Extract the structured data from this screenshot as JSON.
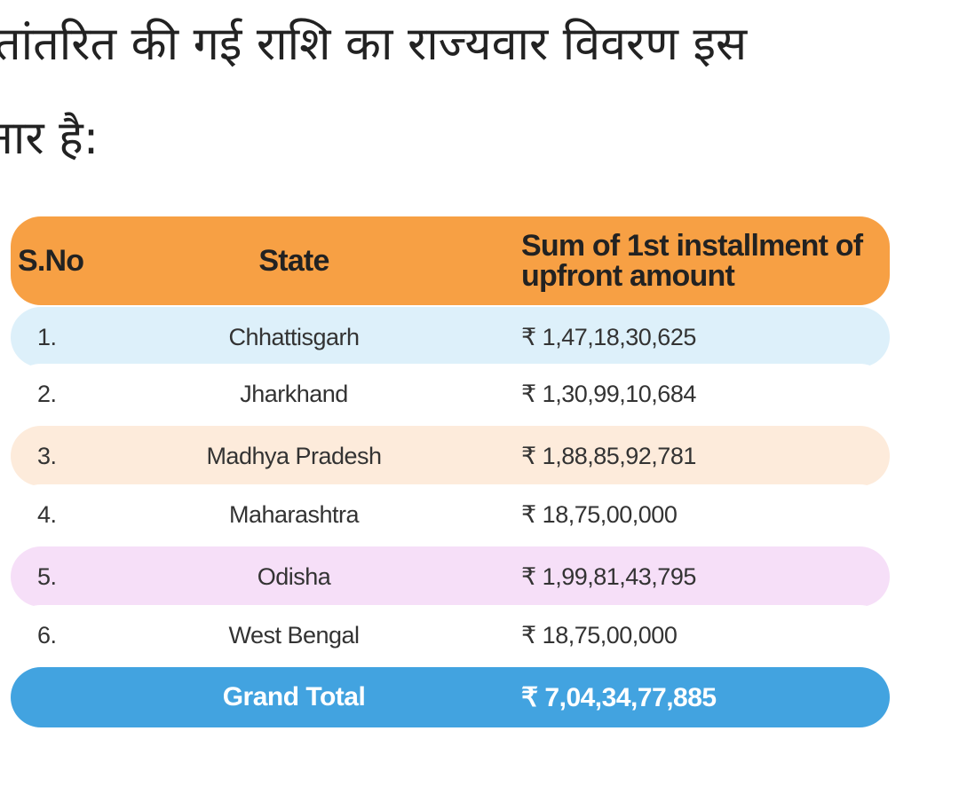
{
  "intro": {
    "line1": "तांतरित की गई राशि का राज्यवार विवरण इस",
    "line2": "नार है:"
  },
  "table": {
    "headers": {
      "sno": "S.No",
      "state": "State",
      "amount": "Sum of 1st installment of upfront amount"
    },
    "rows": [
      {
        "sno": "1.",
        "state": "Chhattisgarh",
        "amount": "₹ 1,47,18,30,625"
      },
      {
        "sno": "2.",
        "state": "Jharkhand",
        "amount": "₹ 1,30,99,10,684"
      },
      {
        "sno": "3.",
        "state": "Madhya Pradesh",
        "amount": "₹ 1,88,85,92,781"
      },
      {
        "sno": "4.",
        "state": "Maharashtra",
        "amount": "₹ 18,75,00,000"
      },
      {
        "sno": "5.",
        "state": "Odisha",
        "amount": "₹ 1,99,81,43,795"
      },
      {
        "sno": "6.",
        "state": "West Bengal",
        "amount": "₹ 18,75,00,000"
      }
    ],
    "total": {
      "label": "Grand Total",
      "amount": "₹ 7,04,34,77,885"
    }
  },
  "colors": {
    "header_bg": "#F7A044",
    "row1_bg": "#DDF0FA",
    "row3_bg": "#FDEBDB",
    "row5_bg": "#F6DFF8",
    "total_bg": "#42A3E0",
    "plain_bg": "#FFFFFF"
  }
}
